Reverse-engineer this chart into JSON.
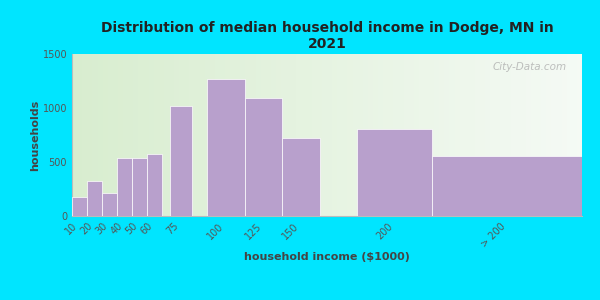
{
  "title": "Distribution of median household income in Dodge, MN in\n2021",
  "xlabel": "household income ($1000)",
  "ylabel": "households",
  "bar_color": "#b8a0cc",
  "background_outer": "#00e5ff",
  "background_inner_left": "#d8edcf",
  "background_inner_right": "#eef5ee",
  "categories": [
    "10",
    "20",
    "30",
    "40",
    "50",
    "60",
    "75",
    "100",
    "125",
    "150",
    "200",
    "> 200"
  ],
  "values": [
    175,
    320,
    215,
    540,
    540,
    570,
    1020,
    1270,
    1090,
    720,
    810,
    560
  ],
  "ylim": [
    0,
    1500
  ],
  "yticks": [
    0,
    500,
    1000,
    1500
  ],
  "bar_widths": [
    10,
    10,
    10,
    10,
    10,
    10,
    15,
    25,
    25,
    25,
    50,
    100
  ],
  "bar_lefts": [
    10,
    20,
    30,
    40,
    50,
    60,
    75,
    100,
    125,
    150,
    200,
    250
  ],
  "watermark": "City-Data.com",
  "title_fontsize": 10,
  "axis_label_fontsize": 8,
  "tick_fontsize": 7,
  "watermark_fontsize": 7.5
}
